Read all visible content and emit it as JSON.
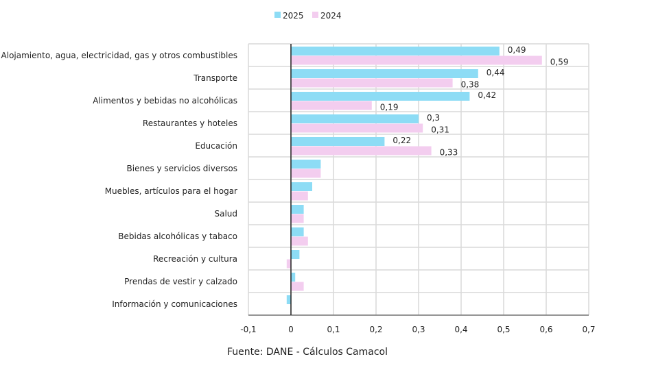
{
  "chart_data": {
    "type": "bar",
    "orientation": "horizontal",
    "categories": [
      "Alojamiento, agua, electricidad, gas y otros combustibles",
      "Transporte",
      "Alimentos y bebidas no alcohólicas",
      "Restaurantes y hoteles",
      "Educación",
      "Bienes y servicios diversos",
      "Muebles, artículos para el hogar",
      "Salud",
      "Bebidas alcohólicas y tabaco",
      "Recreación y cultura",
      "Prendas de vestir y calzado",
      "Información y comunicaciones"
    ],
    "series": [
      {
        "name": "2025",
        "color": "#8ddcf5",
        "values": [
          0.49,
          0.44,
          0.42,
          0.3,
          0.22,
          0.07,
          0.05,
          0.03,
          0.03,
          0.02,
          0.01,
          -0.01
        ],
        "labels": [
          "0,49",
          "0,44",
          "0,42",
          "0,3",
          "0,22",
          "",
          "",
          "",
          "",
          "",
          "",
          ""
        ]
      },
      {
        "name": "2024",
        "color": "#f3cdef",
        "values": [
          0.59,
          0.38,
          0.19,
          0.31,
          0.33,
          0.07,
          0.04,
          0.03,
          0.04,
          -0.01,
          0.03,
          0
        ],
        "labels": [
          "0,59",
          "0,38",
          "0,19",
          "0,31",
          "0,33",
          "",
          "",
          "",
          "",
          "",
          "",
          ""
        ]
      }
    ],
    "xlim": [
      -0.1,
      0.7
    ],
    "xticks": [
      "-0,1",
      "0",
      "0,1",
      "0,2",
      "0,3",
      "0,4",
      "0,5",
      "0,6",
      "0,7"
    ],
    "grid": true,
    "legend": "top"
  },
  "source": "Fuente: DANE - Cálculos Camacol"
}
